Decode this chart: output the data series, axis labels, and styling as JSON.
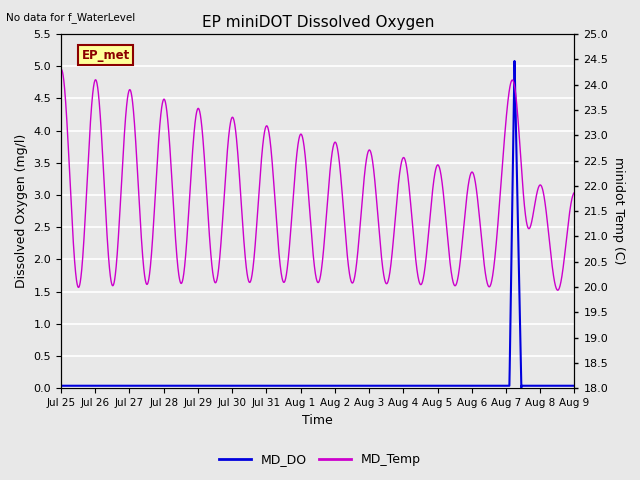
{
  "title": "EP miniDOT Dissolved Oxygen",
  "top_left_text": "No data for f_WaterLevel",
  "annotation_box": "EP_met",
  "xlabel": "Time",
  "ylabel_left": "Dissolved Oxygen (mg/l)",
  "ylabel_right": "minidot Temp (C)",
  "ylim_left": [
    0.0,
    5.5
  ],
  "ylim_right": [
    18.0,
    25.0
  ],
  "xtick_labels": [
    "Jul 25",
    "Jul 26",
    "Jul 27",
    "Jul 28",
    "Jul 29",
    "Jul 30",
    "Jul 31",
    "Aug 1",
    "Aug 2",
    "Aug 3",
    "Aug 4",
    "Aug 5",
    "Aug 6",
    "Aug 7",
    "Aug 8",
    "Aug 9"
  ],
  "background_color": "#e8e8e8",
  "grid_color": "#ffffff",
  "md_do_color": "#0000dd",
  "md_temp_color": "#cc00cc",
  "annotation_box_facecolor": "#ffff99",
  "annotation_box_edgecolor": "#8b0000"
}
